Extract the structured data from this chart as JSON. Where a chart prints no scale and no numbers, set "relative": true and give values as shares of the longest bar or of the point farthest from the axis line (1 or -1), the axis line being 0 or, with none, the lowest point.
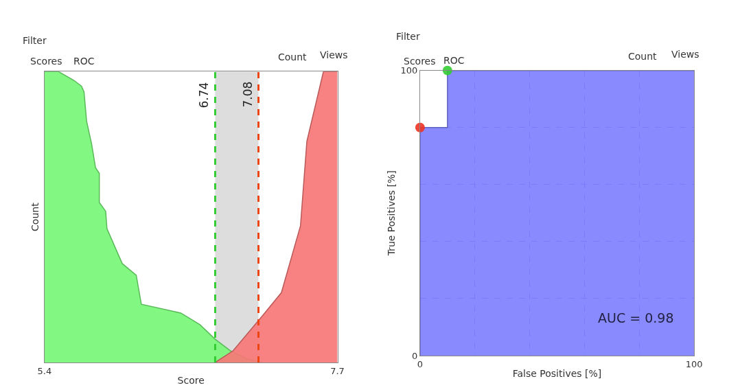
{
  "chart_data": [
    {
      "type": "area",
      "xlabel": "Score",
      "ylabel": "Count",
      "relative": true,
      "xlim": [
        5.4,
        7.7
      ],
      "xticks": [
        5.4,
        7.7
      ],
      "grid": false,
      "annotations": [
        "Filter",
        "Scores",
        "ROC",
        "Count",
        "Views"
      ],
      "series": [
        {
          "color": "#77f777",
          "x": [
            5.4,
            5.51,
            5.63,
            5.69,
            5.71,
            5.73,
            5.77,
            5.8,
            5.83,
            5.83,
            5.88,
            5.89,
            6.01,
            6.12,
            6.16,
            6.47,
            6.62,
            6.74,
            6.86,
            7.0,
            7.11
          ],
          "values": [
            1.0,
            1.0,
            0.97,
            0.95,
            0.93,
            0.83,
            0.75,
            0.67,
            0.65,
            0.55,
            0.52,
            0.46,
            0.34,
            0.3,
            0.2,
            0.17,
            0.13,
            0.08,
            0.04,
            0.01,
            0.0
          ]
        },
        {
          "color": "#f77777",
          "x": [
            6.74,
            6.88,
            7.11,
            7.26,
            7.41,
            7.46,
            7.59,
            7.7
          ],
          "values": [
            0.0,
            0.04,
            0.16,
            0.24,
            0.47,
            0.76,
            1.0,
            1.0
          ]
        }
      ],
      "bands": [
        {
          "axis": "x",
          "from": 6.74,
          "to": 7.08,
          "color": "#dddddd"
        }
      ],
      "ref_lines": [
        {
          "axis": "x",
          "value": 6.74,
          "label": "6.74",
          "color": "#33cc33",
          "line_style": "dashed"
        },
        {
          "axis": "x",
          "value": 7.08,
          "label": "7.08",
          "color": "#ee4411",
          "line_style": "dashed"
        }
      ]
    },
    {
      "type": "area",
      "xlabel": "False Positives [%]",
      "ylabel": "True Positives [%]",
      "xlim": [
        0,
        100
      ],
      "ylim": [
        0,
        100
      ],
      "xticks": [
        0,
        {
          "value": 20,
          "label": null
        },
        {
          "value": 40,
          "label": null
        },
        {
          "value": 60,
          "label": null
        },
        {
          "value": 80,
          "label": null
        },
        100
      ],
      "yticks": [
        0,
        {
          "value": 20,
          "label": null
        },
        {
          "value": 40,
          "label": null
        },
        {
          "value": 60,
          "label": null
        },
        {
          "value": 80,
          "label": null
        },
        100
      ],
      "grid": true,
      "line_style": "dashed",
      "annotations": [
        "Filter",
        "Scores",
        "ROC",
        "Count",
        "Views",
        "AUC = 0.98"
      ],
      "series": [
        {
          "color": "#8080ff",
          "x": [
            0,
            0,
            10,
            10,
            100
          ],
          "values": [
            0,
            80,
            80,
            100,
            100
          ]
        },
        {
          "type": "scatter",
          "marker": "circle",
          "color": "#ee3322",
          "x": [
            0
          ],
          "values": [
            80
          ]
        },
        {
          "type": "scatter",
          "marker": "circle",
          "color": "#33cc33",
          "x": [
            10
          ],
          "values": [
            100
          ]
        }
      ]
    }
  ]
}
